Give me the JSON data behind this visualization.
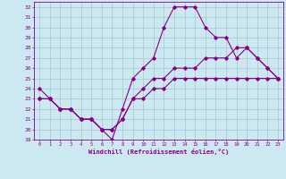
{
  "xlabel": "Windchill (Refroidissement éolien,°C)",
  "background_color": "#cce8f0",
  "grid_color": "#aaccd8",
  "line_color": "#880088",
  "xlim": [
    -0.5,
    23.5
  ],
  "ylim": [
    19,
    32.5
  ],
  "xticks": [
    0,
    1,
    2,
    3,
    4,
    5,
    6,
    7,
    8,
    9,
    10,
    11,
    12,
    13,
    14,
    15,
    16,
    17,
    18,
    19,
    20,
    21,
    22,
    23
  ],
  "yticks": [
    19,
    20,
    21,
    22,
    23,
    24,
    25,
    26,
    27,
    28,
    29,
    30,
    31,
    32
  ],
  "series": [
    {
      "x": [
        0,
        1,
        2,
        3,
        4,
        5,
        6,
        7,
        8,
        9,
        10,
        11,
        12,
        13,
        14,
        15,
        16,
        17,
        18,
        19,
        20,
        21,
        22,
        23
      ],
      "y": [
        24,
        23,
        22,
        22,
        21,
        21,
        20,
        19,
        22,
        25,
        26,
        27,
        30,
        32,
        32,
        32,
        30,
        29,
        29,
        27,
        28,
        27,
        26,
        25
      ]
    },
    {
      "x": [
        0,
        1,
        2,
        3,
        4,
        5,
        6,
        7,
        8,
        9,
        10,
        11,
        12,
        13,
        14,
        15,
        16,
        17,
        18,
        19,
        20,
        21,
        22,
        23
      ],
      "y": [
        23,
        23,
        22,
        22,
        21,
        21,
        20,
        20,
        21,
        23,
        24,
        25,
        25,
        26,
        26,
        26,
        27,
        27,
        27,
        28,
        28,
        27,
        26,
        25
      ]
    },
    {
      "x": [
        0,
        1,
        2,
        3,
        4,
        5,
        6,
        7,
        8,
        9,
        10,
        11,
        12,
        13,
        14,
        15,
        16,
        17,
        18,
        19,
        20,
        21,
        22,
        23
      ],
      "y": [
        23,
        23,
        22,
        22,
        21,
        21,
        20,
        20,
        21,
        23,
        23,
        24,
        24,
        25,
        25,
        25,
        25,
        25,
        25,
        25,
        25,
        25,
        25,
        25
      ]
    }
  ]
}
